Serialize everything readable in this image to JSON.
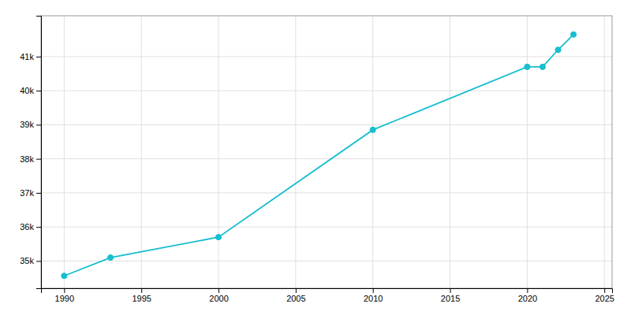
{
  "chart_data": {
    "type": "line",
    "x": [
      1990,
      1993,
      2000,
      2010,
      2020,
      2021,
      2022,
      2023
    ],
    "values": [
      34564,
      35100,
      35700,
      38850,
      40700,
      40700,
      41200,
      41650
    ],
    "color": "#17BECF",
    "marker": "circle",
    "xlim": [
      1988.5,
      2025.5
    ],
    "ylim": [
      34200,
      42200
    ],
    "xticks": [
      1990,
      1995,
      2000,
      2005,
      2010,
      2015,
      2020,
      2025
    ],
    "yticks": [
      {
        "value": 35000,
        "label": "35k"
      },
      {
        "value": 36000,
        "label": "36k"
      },
      {
        "value": 37000,
        "label": "37k"
      },
      {
        "value": 38000,
        "label": "38k"
      },
      {
        "value": 39000,
        "label": "39k"
      },
      {
        "value": 40000,
        "label": "40k"
      },
      {
        "value": 41000,
        "label": "41k"
      }
    ],
    "grid": true
  }
}
